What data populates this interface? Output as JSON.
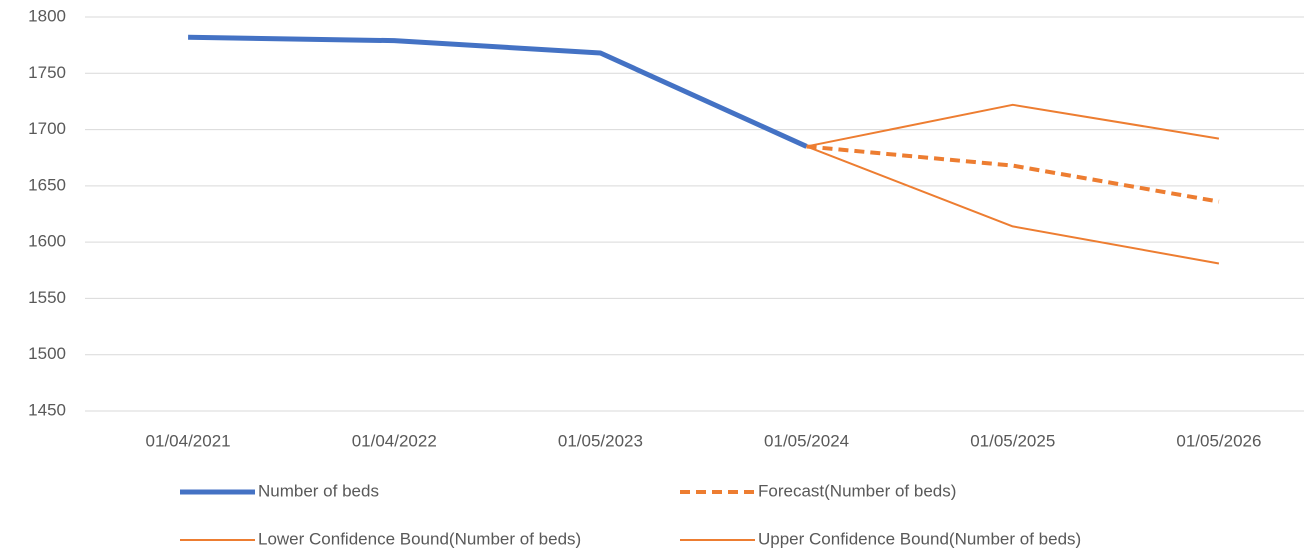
{
  "chart_data": {
    "type": "line",
    "categories": [
      "01/04/2021",
      "01/04/2022",
      "01/05/2023",
      "01/05/2024",
      "01/05/2025",
      "01/05/2026"
    ],
    "series": [
      {
        "name": "Number of beds",
        "color": "#4472c4",
        "line_width": 5,
        "dashed": false,
        "values": [
          1782,
          1779,
          1768,
          1685,
          null,
          null
        ]
      },
      {
        "name": "Forecast(Number of beds)",
        "color": "#ed7d31",
        "line_width": 4,
        "dashed": true,
        "values": [
          null,
          null,
          null,
          1685,
          1668,
          1636
        ]
      },
      {
        "name": "Lower Confidence Bound(Number of beds)",
        "color": "#ed7d31",
        "line_width": 2,
        "dashed": false,
        "values": [
          null,
          null,
          null,
          1685,
          1614,
          1581
        ]
      },
      {
        "name": "Upper Confidence Bound(Number of beds)",
        "color": "#ed7d31",
        "line_width": 2,
        "dashed": false,
        "values": [
          null,
          null,
          null,
          1685,
          1722,
          1692
        ]
      }
    ],
    "ylim": [
      1450,
      1800
    ],
    "yticks": [
      1450,
      1500,
      1550,
      1600,
      1650,
      1700,
      1750,
      1800
    ],
    "grid": true
  }
}
